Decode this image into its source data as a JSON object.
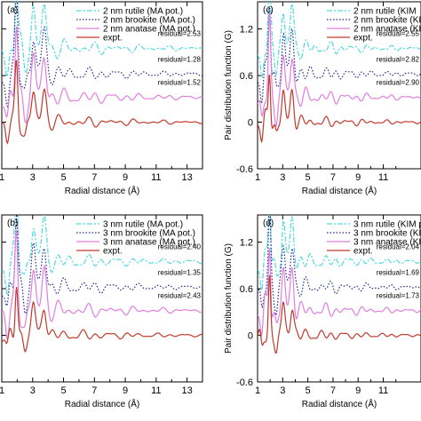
{
  "colors": {
    "rutile": "#4fd9e0",
    "brookite": "#1f2a8f",
    "anatase": "#e07fe0",
    "expt": "#c0392b"
  },
  "chart_data": [
    {
      "type": "line",
      "panel_label": "(a)",
      "xlabel": "Radial distance (Å)",
      "ylabel": "",
      "xlim": [
        1,
        14
      ],
      "ylim": [
        -0.6,
        1.55
      ],
      "xticks": [
        "1",
        "3",
        "5",
        "7",
        "9",
        "11",
        "13"
      ],
      "yticks": [],
      "legend_position": "top-right",
      "series": [
        {
          "name": "2 nm rutile (MA pot.)",
          "style": "dashdot",
          "color_key": "rutile",
          "offset": 0.95,
          "residual_label": "residual=2.53"
        },
        {
          "name": "2 nm brookite (MA pot.)",
          "style": "dotted",
          "color_key": "brookite",
          "offset": 0.62,
          "residual_label": "residual=1.28"
        },
        {
          "name": "2 nm anatase (MA pot.)",
          "style": "solid-light",
          "color_key": "anatase",
          "offset": 0.32,
          "residual_label": "residual=1.52"
        },
        {
          "name": "expt.",
          "style": "solid",
          "color_key": "expt",
          "offset": 0.0,
          "residual_label": ""
        }
      ]
    },
    {
      "type": "line",
      "panel_label": "(c)",
      "xlabel": "Radial distance (Å)",
      "ylabel": "Pair distribution function (G)",
      "xlim": [
        1,
        14
      ],
      "ylim": [
        -0.6,
        1.55
      ],
      "xticks": [
        "1",
        "3",
        "5",
        "7",
        "9",
        "11"
      ],
      "yticks": [
        "1.2",
        "0.6",
        "0",
        "-0.6"
      ],
      "legend_position": "top-right",
      "series": [
        {
          "name": "2 nm rutile (KIM",
          "style": "dashdot",
          "color_key": "rutile",
          "offset": 0.95,
          "residual_label": "residual=2.55"
        },
        {
          "name": "2 nm brookite (KIM",
          "style": "dotted",
          "color_key": "brookite",
          "offset": 0.62,
          "residual_label": "residual=2.82"
        },
        {
          "name": "2 nm anatase (KIM",
          "style": "solid-light",
          "color_key": "anatase",
          "offset": 0.32,
          "residual_label": "residual=2.90"
        },
        {
          "name": "expt.",
          "style": "solid",
          "color_key": "expt",
          "offset": 0.0,
          "residual_label": ""
        }
      ]
    },
    {
      "type": "line",
      "panel_label": "(b)",
      "xlabel": "Radial distance (Å)",
      "ylabel": "",
      "xlim": [
        1,
        14
      ],
      "ylim": [
        -0.6,
        1.55
      ],
      "xticks": [
        "1",
        "3",
        "5",
        "7",
        "9",
        "11",
        "13"
      ],
      "yticks": [],
      "legend_position": "top-right",
      "series": [
        {
          "name": "3 nm rutile (MA pot.)",
          "style": "dashdot",
          "color_key": "rutile",
          "offset": 0.95,
          "residual_label": "residual=2.40"
        },
        {
          "name": "3 nm brookite (MA pot.)",
          "style": "dotted",
          "color_key": "brookite",
          "offset": 0.62,
          "residual_label": "residual=1.35"
        },
        {
          "name": "3 nm anatase (MA pot.)",
          "style": "solid-light",
          "color_key": "anatase",
          "offset": 0.32,
          "residual_label": "residual=2.43"
        },
        {
          "name": "expt.",
          "style": "solid",
          "color_key": "expt",
          "offset": 0.0,
          "residual_label": ""
        }
      ]
    },
    {
      "type": "line",
      "panel_label": "(d)",
      "xlabel": "Radial distance (Å)",
      "ylabel": "Pair distribution function (G)",
      "xlim": [
        1,
        14
      ],
      "ylim": [
        -0.6,
        1.55
      ],
      "xticks": [
        "1",
        "3",
        "5",
        "7",
        "9",
        "11"
      ],
      "yticks": [
        "1.2",
        "0.6",
        "0",
        "-0.6"
      ],
      "legend_position": "top-right",
      "series": [
        {
          "name": "3 nm rutile (KIM po",
          "style": "dashdot",
          "color_key": "rutile",
          "offset": 0.95,
          "residual_label": "residual=2.04"
        },
        {
          "name": "3 nm brookite (KIM",
          "style": "dotted",
          "color_key": "brookite",
          "offset": 0.62,
          "residual_label": "residual=1.69"
        },
        {
          "name": "3 nm anatase (KIM",
          "style": "solid-light",
          "color_key": "anatase",
          "offset": 0.32,
          "residual_label": "residual=1.73"
        },
        {
          "name": "expt.",
          "style": "solid",
          "color_key": "expt",
          "offset": 0.0,
          "residual_label": ""
        }
      ]
    }
  ]
}
